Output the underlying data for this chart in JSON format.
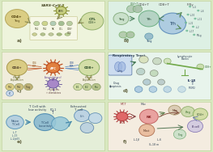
{
  "fig_bg": "#d8e8c0",
  "panel_bgs": [
    "#eef4dc",
    "#ddf0e4",
    "#f0eddc",
    "#e8f4ec",
    "#e4eed8",
    "#f4ece0"
  ],
  "panel_border": "#c8d8a8",
  "panel_labels": [
    "a)",
    "b)",
    "c)",
    "d)",
    "e)",
    "f)"
  ],
  "label_color": "#666644",
  "label_fs": 4.5,
  "a_title": "SARS-CoV-2",
  "a_cell_left_color": "#d8c878",
  "a_cell_left_label": "CD4+",
  "a_cell_left2_label": "Treg",
  "a_cell_right_color": "#d0dca0",
  "a_cell_right_label": "CTL",
  "a_cell_right2_label": "CD8+",
  "a_virus_color": "#c8d080",
  "a_box_color": "#f4f8e0",
  "a_row_labels": [
    "Th1",
    "Th2",
    "NK",
    "CTL",
    "CD8/CD4"
  ],
  "a_row_colors": [
    "#b8d098",
    "#c8d080",
    "#a8c8b0",
    "#98b888",
    "#b0c898"
  ],
  "b_cell1_color": "#c8e0c8",
  "b_cell1_label": "Treg",
  "b_cell2_color": "#b0d0c0",
  "b_cell2_label": "Tfh",
  "b_cell3_color": "#a8c8e0",
  "b_cell3_label": "Tfh",
  "b_cytokines": [
    "IL-4",
    "IL-6",
    "IL-10",
    "IL-12",
    "IL-21",
    "IL-2",
    "IL-17",
    "IFN-g"
  ],
  "b_small_color": "#90b8a0",
  "c_left_color": "#d8c878",
  "c_right_color": "#d0dca0",
  "c_apc_color": "#e08040",
  "c_apc_spike": "#c05020",
  "c_sub_colors": [
    "#d8c878",
    "#c8b870",
    "#b8a868",
    "#d0dca0",
    "#c0cc90",
    "#b0bc80"
  ],
  "c_sub_labels": [
    "Th1",
    "Th2",
    "Treg",
    "Tc1",
    "Tc2",
    "Tex"
  ],
  "c_plasma_color": "#a888c8",
  "d_lung_color": "#c8d8f0",
  "d_scale_color": "#70a848",
  "d_cell_colors": [
    "#d8e0b8",
    "#c8d8c0",
    "#b8d0c8",
    "#c0d8b8",
    "#b0c8d0",
    "#b8c8c8"
  ],
  "e_naive_color": "#b0cce0",
  "e_low_color1": "#88b8d0",
  "e_low_color2": "#98c8d8",
  "e_exh_color": "#b8d0e4",
  "f_spiky_color": "#e06868",
  "f_nk_color": "#e89898",
  "f_mast_color": "#e8b898",
  "f_treg_color": "#c8d8a8",
  "f_cd4_color": "#d0dca0",
  "f_bcell_color": "#d0c8e0"
}
